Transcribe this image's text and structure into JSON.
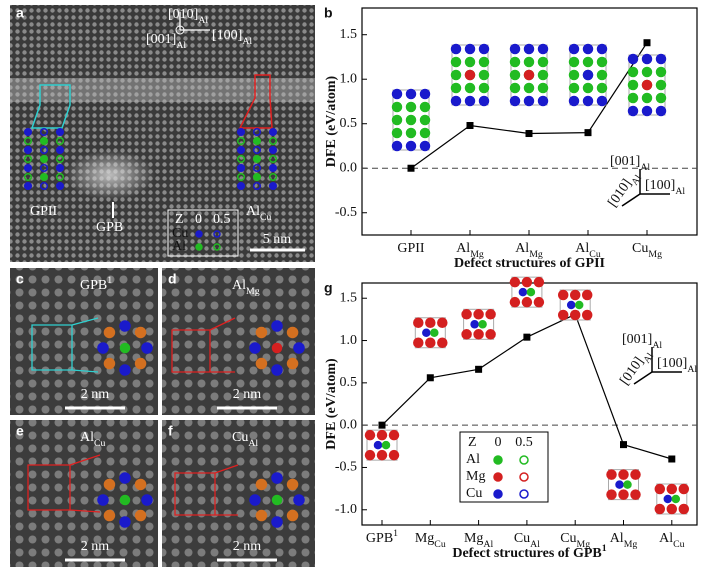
{
  "panel_a": {
    "letter": "a",
    "axes": [
      {
        "base": "[010]",
        "sub": "Al"
      },
      {
        "base": "[100]",
        "sub": "Al"
      },
      {
        "base": "[001]",
        "sub": "Al"
      }
    ],
    "labels": [
      "GPII",
      "GPB",
      {
        "base": "Al",
        "sub": "Cu"
      }
    ],
    "scale_bar": "5 nm",
    "legend": {
      "z": "Z",
      "z_values": [
        "0",
        "0.5"
      ],
      "elements": [
        "Cu",
        "Al"
      ],
      "colors": [
        "#1a1acc",
        "#22bb22"
      ]
    }
  },
  "panel_c": {
    "letter": "c",
    "label": {
      "base": "GPB",
      "sup": "1"
    },
    "scale_bar": "2 nm"
  },
  "panel_d": {
    "letter": "d",
    "label": {
      "base": "Al",
      "sub": "Mg"
    },
    "scale_bar": "2 nm"
  },
  "panel_e": {
    "letter": "e",
    "label": {
      "base": "Al",
      "sub": "Cu"
    },
    "scale_bar": "2 nm"
  },
  "panel_f": {
    "letter": "f",
    "label": {
      "base": "Cu",
      "sub": "Al"
    },
    "scale_bar": "2 nm"
  },
  "chart_data": [
    {
      "type": "line",
      "letter": "b",
      "y_label": "DFE (eV/atom)",
      "x_label": "Defect structures of GPII",
      "categories": [
        {
          "base": "GPII"
        },
        {
          "base": "Al",
          "sub": "Mg"
        },
        {
          "base": "Al",
          "sub": "Mg"
        },
        {
          "base": "Al",
          "sub": "Cu"
        },
        {
          "base": "Cu",
          "sub": "Mg"
        }
      ],
      "values": [
        0.0,
        0.48,
        0.39,
        0.4,
        1.41
      ],
      "color": "#000000",
      "ylim": [
        -0.75,
        1.8
      ],
      "yticks": [
        -0.5,
        {
          "value": 0,
          "label": "0.0"
        },
        0.5,
        {
          "value": 1,
          "label": "1.0"
        },
        1.5
      ],
      "zero_line": true,
      "axes": [
        {
          "base": "[001]",
          "sub": "Al"
        },
        {
          "base": "[100]",
          "sub": "Al"
        },
        {
          "base": "[010]",
          "sub": "Al"
        }
      ]
    },
    {
      "type": "line",
      "letter": "g",
      "y_label": "DFE (eV/atom)",
      "x_label": {
        "base": "Defect structures of GPB",
        "sup": "1"
      },
      "categories": [
        {
          "base": "GPB",
          "sup": "1"
        },
        {
          "base": "Mg",
          "sub": "Cu"
        },
        {
          "base": "Mg",
          "sub": "Al"
        },
        {
          "base": "Cu",
          "sub": "Al"
        },
        {
          "base": "Cu",
          "sub": "Mg"
        },
        {
          "base": "Al",
          "sub": "Mg"
        },
        {
          "base": "Al",
          "sub": "Cu"
        }
      ],
      "values": [
        0.0,
        0.56,
        0.66,
        1.04,
        1.31,
        -0.23,
        -0.4
      ],
      "color": "#000000",
      "ylim": [
        -1.18,
        1.68
      ],
      "yticks": [
        {
          "value": -1,
          "label": "-1.0"
        },
        -0.5,
        {
          "value": 0,
          "label": "0.0"
        },
        0.5,
        {
          "value": 1,
          "label": "1.0"
        },
        1.5
      ],
      "zero_line": true,
      "axes": [
        {
          "base": "[001]",
          "sub": "Al"
        },
        {
          "base": "[100]",
          "sub": "Al"
        },
        {
          "base": "[010]",
          "sub": "Al"
        }
      ],
      "legend": {
        "z": "Z",
        "z_values": [
          "0",
          "0.5"
        ],
        "elements": [
          "Al",
          "Mg",
          "Cu"
        ],
        "colors": [
          "#22bb22",
          "#d42020",
          "#1a1acc"
        ]
      }
    }
  ]
}
